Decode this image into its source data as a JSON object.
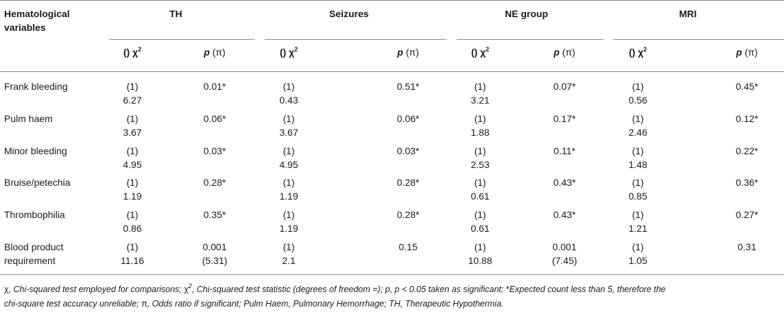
{
  "table": {
    "row_header": [
      "Hematological",
      "variables"
    ],
    "groups": [
      "TH",
      "Seizures",
      "NE group",
      "MRI"
    ],
    "sub_chi": "() χ",
    "sub_chi_sup": "2",
    "sub_p_italic": "p",
    "sub_p_rest": " (π)",
    "rows": [
      {
        "label": [
          "Frank bleeding",
          ""
        ],
        "cells": [
          [
            "(1)",
            "6.27"
          ],
          [
            "0.01*",
            ""
          ],
          [
            "(1)",
            "0.43"
          ],
          [
            "0.51*",
            ""
          ],
          [
            "(1)",
            "3.21"
          ],
          [
            "0.07*",
            ""
          ],
          [
            "(1)",
            "0.56"
          ],
          [
            "0.45*",
            ""
          ]
        ]
      },
      {
        "label": [
          "Pulm haem",
          ""
        ],
        "cells": [
          [
            "(1)",
            "3.67"
          ],
          [
            "0.06*",
            ""
          ],
          [
            "(1)",
            "3.67"
          ],
          [
            "0.06*",
            ""
          ],
          [
            "(1)",
            "1.88"
          ],
          [
            "0.17*",
            ""
          ],
          [
            "(1)",
            "2.46"
          ],
          [
            "0.12*",
            ""
          ]
        ]
      },
      {
        "label": [
          "Minor bleeding",
          ""
        ],
        "cells": [
          [
            "(1)",
            "4.95"
          ],
          [
            "0.03*",
            ""
          ],
          [
            "(1)",
            "4.95"
          ],
          [
            "0.03*",
            ""
          ],
          [
            "(1)",
            "2.53"
          ],
          [
            "0.11*",
            ""
          ],
          [
            "(1)",
            "1.48"
          ],
          [
            "0.22*",
            ""
          ]
        ]
      },
      {
        "label": [
          "Bruise/petechia",
          ""
        ],
        "cells": [
          [
            "(1)",
            "1.19"
          ],
          [
            "0.28*",
            ""
          ],
          [
            "(1)",
            "1.19"
          ],
          [
            "0.28*",
            ""
          ],
          [
            "(1)",
            "0.61"
          ],
          [
            "0.43*",
            ""
          ],
          [
            "(1)",
            "0.85"
          ],
          [
            "0.36*",
            ""
          ]
        ]
      },
      {
        "label": [
          "Thrombophilia",
          ""
        ],
        "cells": [
          [
            "(1)",
            "0.86"
          ],
          [
            "0.35*",
            ""
          ],
          [
            "(1)",
            "1.19"
          ],
          [
            "0.28*",
            ""
          ],
          [
            "(1)",
            "0.61"
          ],
          [
            "0.43*",
            ""
          ],
          [
            "(1)",
            "1.21"
          ],
          [
            "0.27*",
            ""
          ]
        ]
      },
      {
        "label": [
          "Blood product",
          "requirement"
        ],
        "cells": [
          [
            "(1)",
            "11.16"
          ],
          [
            "0.001",
            "(5.31)"
          ],
          [
            "(1)",
            "2.1"
          ],
          [
            "0.15",
            ""
          ],
          [
            "(1)",
            "10.88"
          ],
          [
            "0.001",
            "(7.45)"
          ],
          [
            "(1)",
            "1.05"
          ],
          [
            "0.31",
            ""
          ]
        ]
      }
    ]
  },
  "footnote": {
    "chi": "χ",
    "part1": ", Chi-squared test employed for comparisons; ",
    "chi2": "χ",
    "chi2_sup": "2",
    "part2": ", Chi-squared test statistic (degrees of freedom =); p, p < 0.05 taken as significant; ",
    "star": "*",
    "part3": "Expected count less than 5, therefore the",
    "line2a": "chi-square test accuracy unreliable; ",
    "pi": "π",
    "line2b": ", Odds ratio if significant; Pulm Haem, Pulmonary Hemorrhage; TH, Therapeutic Hypothermia."
  }
}
